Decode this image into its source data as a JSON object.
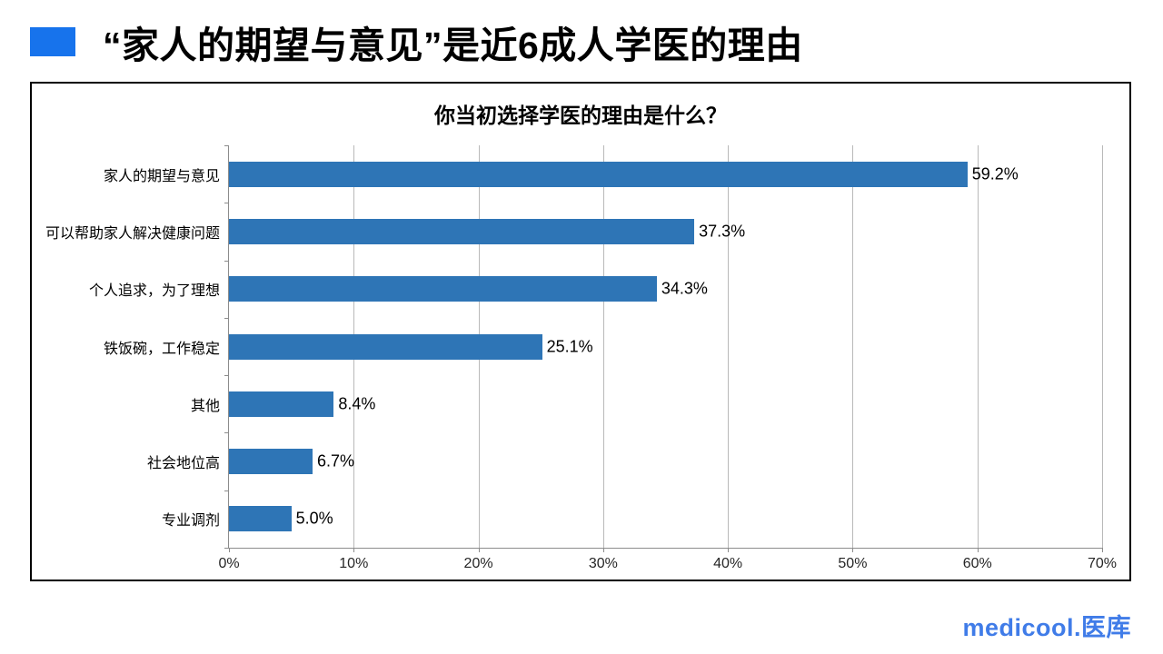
{
  "header": {
    "title": "“家人的期望与意见”是近6成人学医的理由",
    "accent_color": "#1773EC"
  },
  "chart_data": {
    "type": "bar",
    "orientation": "horizontal",
    "title": "你当初选择学医的理由是什么？",
    "categories": [
      "家人的期望与意见",
      "可以帮助家人解决健康问题",
      "个人追求，为了理想",
      "铁饭碗，工作稳定",
      "其他",
      "社会地位高",
      "专业调剂"
    ],
    "values": [
      59.2,
      37.3,
      34.3,
      25.1,
      8.4,
      6.7,
      5.0
    ],
    "value_labels": [
      "59.2%",
      "37.3%",
      "34.3%",
      "25.1%",
      "8.4%",
      "6.7%",
      "5.0%"
    ],
    "xlabel": "",
    "ylabel": "",
    "xlim": [
      0,
      70
    ],
    "x_ticks": [
      "0%",
      "10%",
      "20%",
      "30%",
      "40%",
      "50%",
      "60%",
      "70%"
    ],
    "bar_color": "#2E75B6",
    "grid": true,
    "legend": "none"
  },
  "footer": {
    "logo_text": "medicool.医库",
    "logo_color": "#407CE8"
  }
}
